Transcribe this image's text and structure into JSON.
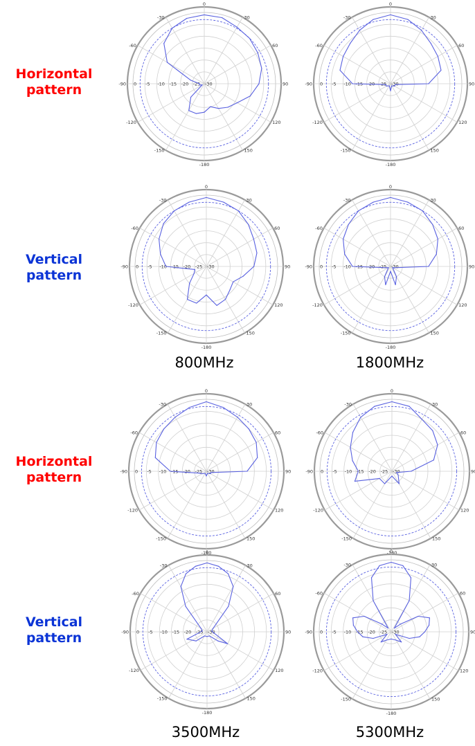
{
  "colors": {
    "horizontal_label": "#ff0000",
    "vertical_label": "#0b34d6",
    "trace": "#5860e0",
    "ref_circle": "#5860e0",
    "grid": "#d0d0d0"
  },
  "row_labels": {
    "h1": [
      "Horizontal",
      "pattern"
    ],
    "v1": [
      "Vertical",
      "pattern"
    ],
    "h2": [
      "Horizontal",
      "pattern"
    ],
    "v2": [
      "Vertical",
      "pattern"
    ]
  },
  "freq_labels": {
    "f800": "800MHz",
    "f1800": "1800MHz",
    "f3500": "3500MHz",
    "f5300": "5300MHz"
  },
  "chart_data": [
    {
      "id": "h800",
      "type": "polar",
      "frequency": "800MHz",
      "plane": "Horizontal pattern",
      "angle_ticks": [
        "0",
        "30",
        "60",
        "90",
        "120",
        "150",
        "-180",
        "-150",
        "-120",
        "-90",
        "-60",
        "-30"
      ],
      "radial_ticks": [
        "0",
        "-5",
        "-10",
        "-15",
        "-20",
        "-25",
        "-30"
      ],
      "rlim": [
        -30,
        0
      ],
      "theta": [
        0,
        15,
        30,
        45,
        60,
        75,
        90,
        105,
        120,
        135,
        150,
        165,
        180,
        195,
        210,
        225,
        240,
        255,
        270,
        285,
        300,
        315,
        330,
        345
      ],
      "r": [
        -1,
        -1.2,
        -2.5,
        -3,
        -4,
        -5,
        -7,
        -10,
        -14,
        -16,
        -18,
        -20,
        -18,
        -17,
        -17,
        -22,
        -29,
        -28,
        -28,
        -24,
        -12,
        -6,
        -3,
        -1.5
      ]
    },
    {
      "id": "h1800",
      "type": "polar",
      "frequency": "1800MHz",
      "plane": "Horizontal pattern",
      "angle_ticks": [
        "0",
        "30",
        "60",
        "90",
        "120",
        "150",
        "-180",
        "-150",
        "-120",
        "-90",
        "-60",
        "-30"
      ],
      "radial_ticks": [
        "0",
        "-5",
        "-10",
        "-15",
        "-20",
        "-25",
        "-30"
      ],
      "rlim": [
        -30,
        0
      ],
      "theta": [
        0,
        15,
        30,
        45,
        60,
        75,
        90,
        100,
        120,
        150,
        180,
        210,
        240,
        260,
        270,
        285,
        300,
        315,
        330,
        345
      ],
      "r": [
        -1,
        -2,
        -4,
        -6,
        -7,
        -8,
        -14,
        -28,
        -28,
        -29,
        -27,
        -29,
        -28,
        -28,
        -14,
        -8,
        -7,
        -6,
        -4,
        -2
      ]
    },
    {
      "id": "v800",
      "type": "polar",
      "frequency": "800MHz",
      "plane": "Vertical pattern",
      "angle_ticks": [
        "0",
        "30",
        "60",
        "90",
        "120",
        "150",
        "-180",
        "-150",
        "-120",
        "-90",
        "-60",
        "-30"
      ],
      "radial_ticks": [
        "0",
        "-5",
        "-10",
        "-15",
        "-20",
        "-25",
        "-30"
      ],
      "rlim": [
        -30,
        0
      ],
      "theta": [
        0,
        15,
        30,
        45,
        60,
        75,
        90,
        105,
        120,
        135,
        150,
        165,
        180,
        195,
        210,
        225,
        240,
        255,
        270,
        285,
        300,
        315,
        330,
        345
      ],
      "r": [
        -1,
        -2,
        -3,
        -5,
        -7,
        -8,
        -10,
        -14,
        -17,
        -16,
        -14,
        -13,
        -18,
        -14,
        -14,
        -20,
        -24,
        -25,
        -13,
        -10,
        -7,
        -4.5,
        -3,
        -2
      ]
    },
    {
      "id": "v1800",
      "type": "polar",
      "frequency": "1800MHz",
      "plane": "Vertical pattern",
      "angle_ticks": [
        "0",
        "30",
        "60",
        "90",
        "120",
        "150",
        "-180",
        "-150",
        "-120",
        "-90",
        "-60",
        "-30"
      ],
      "radial_ticks": [
        "0",
        "-5",
        "-10",
        "-15",
        "-20",
        "-25",
        "-30"
      ],
      "rlim": [
        -30,
        0
      ],
      "theta": [
        0,
        15,
        30,
        45,
        60,
        75,
        90,
        105,
        120,
        150,
        165,
        180,
        195,
        210,
        240,
        255,
        270,
        285,
        300,
        315,
        330,
        345
      ],
      "r": [
        -1,
        -2,
        -3,
        -5,
        -7,
        -10,
        -14,
        -28,
        -29,
        -25,
        -22,
        -28,
        -22,
        -25,
        -29,
        -28,
        -14,
        -10,
        -7,
        -5,
        -3,
        -2
      ]
    },
    {
      "id": "h3500",
      "type": "polar",
      "frequency": "3500MHz",
      "plane": "Horizontal pattern",
      "angle_ticks": [
        "0",
        "30",
        "60",
        "90",
        "120",
        "150",
        "-180",
        "-150",
        "-120",
        "-90",
        "-60",
        "-30"
      ],
      "radial_ticks": [
        "0",
        "-5",
        "-10",
        "-15",
        "-20",
        "-25",
        "-30"
      ],
      "rlim": [
        -30,
        0
      ],
      "theta": [
        0,
        15,
        30,
        45,
        60,
        75,
        90,
        105,
        120,
        150,
        180,
        210,
        240,
        255,
        270,
        285,
        300,
        315,
        330,
        345
      ],
      "r": [
        -1,
        -2.5,
        -4,
        -5,
        -6,
        -8,
        -13,
        -28,
        -28,
        -29,
        -28,
        -29,
        -28,
        -27,
        -15,
        -8,
        -6,
        -5,
        -4,
        -2.5
      ]
    },
    {
      "id": "h5300",
      "type": "polar",
      "frequency": "5300MHz",
      "plane": "Horizontal pattern",
      "angle_ticks": [
        "0",
        "30",
        "60",
        "90",
        "120",
        "150",
        "-180",
        "-150",
        "-120",
        "-90",
        "-60",
        "-30"
      ],
      "radial_ticks": [
        "0",
        "-5",
        "-10",
        "-15",
        "-20",
        "-25",
        "-30"
      ],
      "rlim": [
        -30,
        0
      ],
      "theta": [
        0,
        15,
        30,
        45,
        60,
        75,
        90,
        105,
        120,
        150,
        180,
        210,
        240,
        255,
        270,
        285,
        300,
        315,
        330,
        345
      ],
      "r": [
        -1,
        -2,
        -5,
        -6,
        -8,
        -12,
        -22,
        -28,
        -27,
        -24,
        -28,
        -24,
        -24,
        -14,
        -16,
        -13,
        -10,
        -7,
        -4,
        -2
      ]
    },
    {
      "id": "v3500",
      "type": "polar",
      "frequency": "3500MHz",
      "plane": "Vertical pattern",
      "angle_ticks": [
        "0",
        "30",
        "60",
        "90",
        "120",
        "150",
        "-180",
        "-150",
        "-120",
        "-90",
        "-60",
        "-30"
      ],
      "radial_ticks": [
        "0",
        "-5",
        "-10",
        "-15",
        "-20",
        "-25",
        "-30"
      ],
      "rlim": [
        -30,
        0
      ],
      "theta": [
        0,
        10,
        20,
        30,
        40,
        60,
        80,
        100,
        120,
        130,
        150,
        180,
        210,
        230,
        250,
        280,
        300,
        320,
        330,
        340,
        350
      ],
      "r": [
        -1,
        -2,
        -4,
        -8,
        -16,
        -27,
        -28,
        -27,
        -20,
        -24,
        -28,
        -28,
        -28,
        -24,
        -21,
        -28,
        -27,
        -16,
        -8,
        -4,
        -2
      ]
    },
    {
      "id": "v5300",
      "type": "polar",
      "frequency": "5300MHz",
      "plane": "Vertical pattern",
      "angle_ticks": [
        "0",
        "30",
        "60",
        "90",
        "120",
        "150",
        "-180",
        "-150",
        "-120",
        "-90",
        "-60",
        "-30"
      ],
      "radial_ticks": [
        "0",
        "-5",
        "-10",
        "-15",
        "-20",
        "-25",
        "-30"
      ],
      "rlim": [
        -30,
        0
      ],
      "theta": [
        0,
        10,
        20,
        30,
        40,
        50,
        60,
        70,
        80,
        90,
        100,
        110,
        120,
        135,
        150,
        180,
        210,
        225,
        240,
        250,
        260,
        270,
        280,
        290,
        300,
        310,
        320,
        330,
        340,
        350
      ],
      "r": [
        -1,
        -2,
        -6,
        -15,
        -28,
        -25,
        -17,
        -13,
        -14,
        -16,
        -18,
        -22,
        -28,
        -24,
        -26,
        -27,
        -26,
        -24,
        -28,
        -22,
        -18,
        -16,
        -14,
        -13,
        -17,
        -25,
        -28,
        -15,
        -6,
        -2
      ]
    }
  ]
}
